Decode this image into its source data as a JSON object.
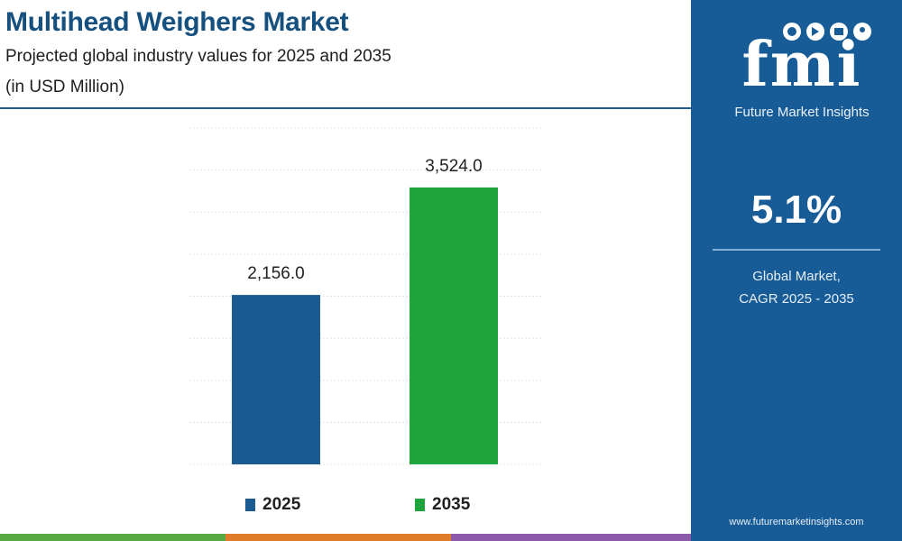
{
  "header": {
    "title": "Multihead Weighers Market",
    "subtitle": "Projected global industry values for 2025 and 2035",
    "unit": "(in USD Million)"
  },
  "sidebar": {
    "logo_text": "fmi",
    "logo_subtitle": "Future Market Insights",
    "cagr_value": "5.1%",
    "cagr_label_line1": "Global Market,",
    "cagr_label_line2": "CAGR 2025 - 2035",
    "url": "www.futuremarketinsights.com"
  },
  "colors": {
    "title": "#15507f",
    "panel": "#175c97",
    "bar_2025": "#1a5b94",
    "bar_2035": "#1fa53b"
  },
  "chart_data": {
    "type": "bar",
    "categories": [
      "2025",
      "2035"
    ],
    "values": [
      2156.0,
      3524.0
    ],
    "data_labels": [
      "2,156.0",
      "3,524.0"
    ],
    "colors": [
      "#1a5b94",
      "#1fa53b"
    ],
    "title": "Multihead Weighers Market",
    "xlabel": "",
    "ylabel": "",
    "ylim": [
      0,
      4280
    ],
    "grid": true,
    "legend_placement": "bottom",
    "legend": [
      {
        "name": "2025",
        "color": "#1a5b94"
      },
      {
        "name": "2035",
        "color": "#1fa53b"
      }
    ]
  }
}
